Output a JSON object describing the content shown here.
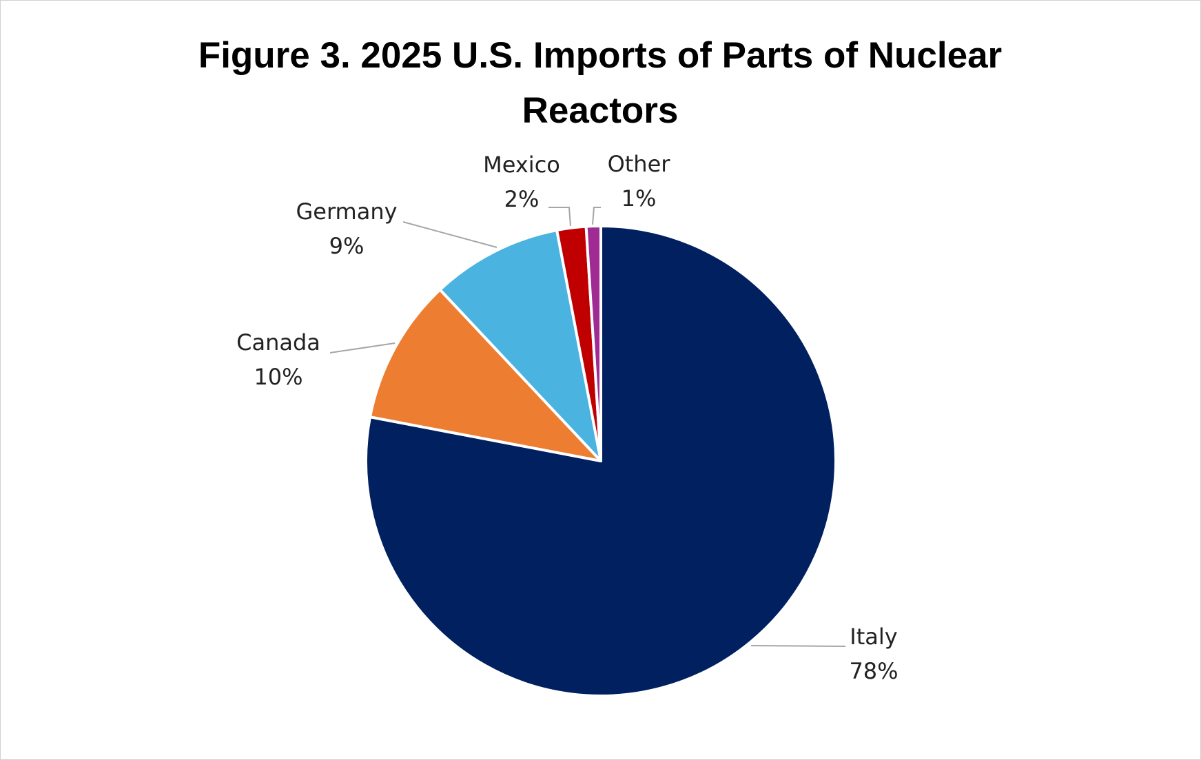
{
  "chart_data": {
    "type": "pie",
    "title": "Figure 3. 2025 U.S. Imports of Parts of Nuclear Reactors",
    "categories": [
      "Italy",
      "Canada",
      "Germany",
      "Mexico",
      "Other"
    ],
    "values": [
      78,
      10,
      9,
      2,
      1
    ],
    "value_labels": [
      "78%",
      "10%",
      "9%",
      "2%",
      "1%"
    ],
    "colors": [
      "#002060",
      "#ED7D31",
      "#4BB3E0",
      "#C00000",
      "#A02B93"
    ]
  }
}
